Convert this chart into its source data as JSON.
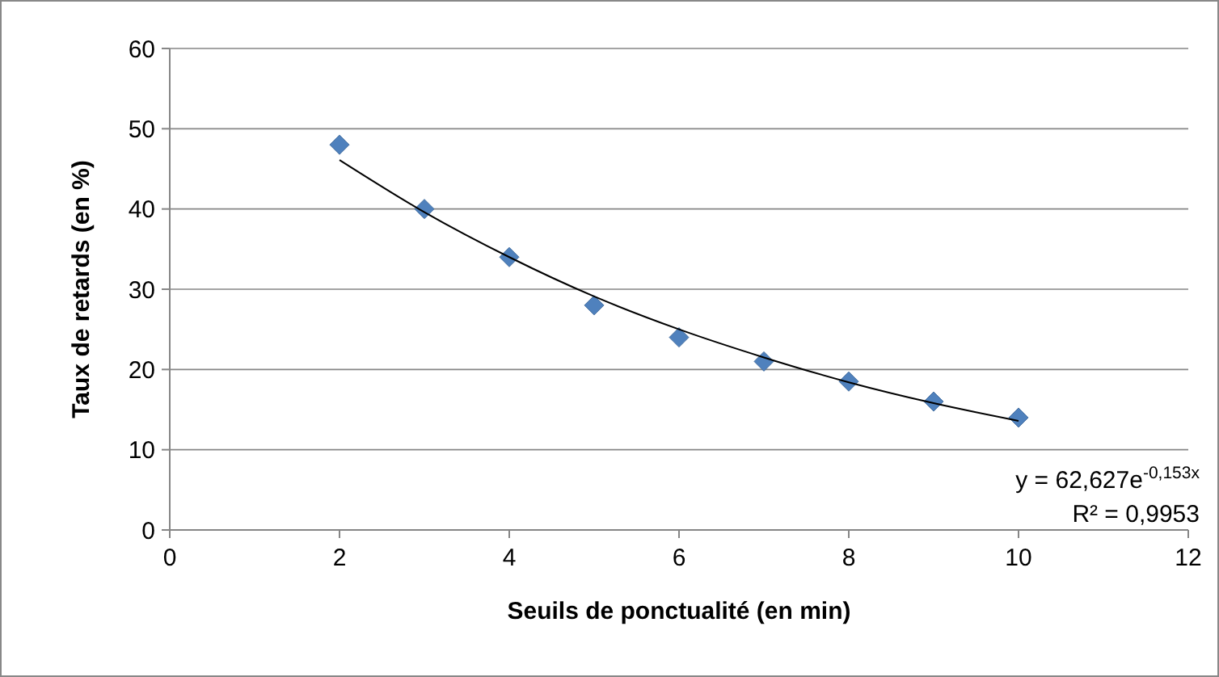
{
  "chart_data": {
    "type": "scatter",
    "xlabel": "Seuils de ponctualité (en min)",
    "ylabel": "Taux de retards (en %)",
    "xlim": [
      0,
      12
    ],
    "xticks": [
      0,
      2,
      4,
      6,
      8,
      10,
      12
    ],
    "ylim": [
      0,
      60
    ],
    "yticks": [
      0,
      10,
      20,
      30,
      40,
      50,
      60
    ],
    "grid": "y",
    "marker": "diamond",
    "series": [
      {
        "type": "scatter",
        "color": "#4f81bd",
        "x": [
          2,
          3,
          4,
          5,
          6,
          7,
          8,
          9,
          10
        ],
        "values": [
          48,
          40,
          34,
          28,
          24,
          21,
          18.5,
          16,
          14
        ]
      },
      {
        "type": "line",
        "color": "#000000",
        "marker": "none",
        "line_style": "solid",
        "x": [
          2,
          3,
          4,
          5,
          6,
          7,
          8,
          9,
          10
        ],
        "values": [
          46.1,
          39.6,
          34.0,
          29.1,
          25.0,
          21.5,
          18.4,
          15.8,
          13.6
        ]
      }
    ],
    "annotations": [
      "y = 62,627e$^{-0,153x}$",
      "R² = 0,9953"
    ]
  }
}
